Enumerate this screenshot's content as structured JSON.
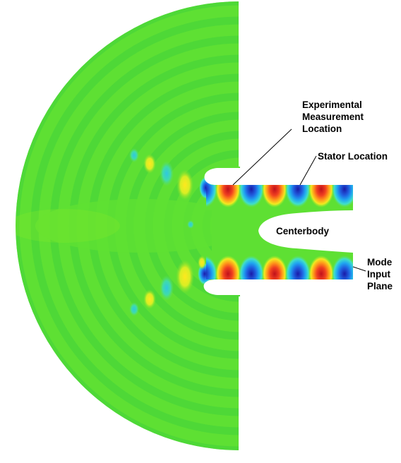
{
  "colors": {
    "background": "#ffffff",
    "field_base": "#5ee033",
    "field_band": "#49d63a",
    "field_band_light": "#7fe82c",
    "positive_core": "#c8141e",
    "positive_mid": "#ff7a1a",
    "positive_edge": "#f5e61e",
    "negative_core": "#1e1eb4",
    "negative_mid": "#1e8cf0",
    "negative_edge": "#3cdcc8",
    "duct_cutout": "#ffffff"
  },
  "annotations": {
    "measurement": [
      "Experimental",
      "Measurement",
      "Location"
    ],
    "stator": "Stator Location",
    "centerbody": "Centerbody",
    "mode_input": [
      "Mode",
      "Input",
      "Plane"
    ]
  },
  "duct_modes": {
    "upper_row": [
      "neg",
      "pos",
      "neg",
      "pos",
      "neg",
      "pos",
      "neg"
    ],
    "lower_row": [
      "neg",
      "pos",
      "neg",
      "pos",
      "neg",
      "pos",
      "neg"
    ]
  }
}
